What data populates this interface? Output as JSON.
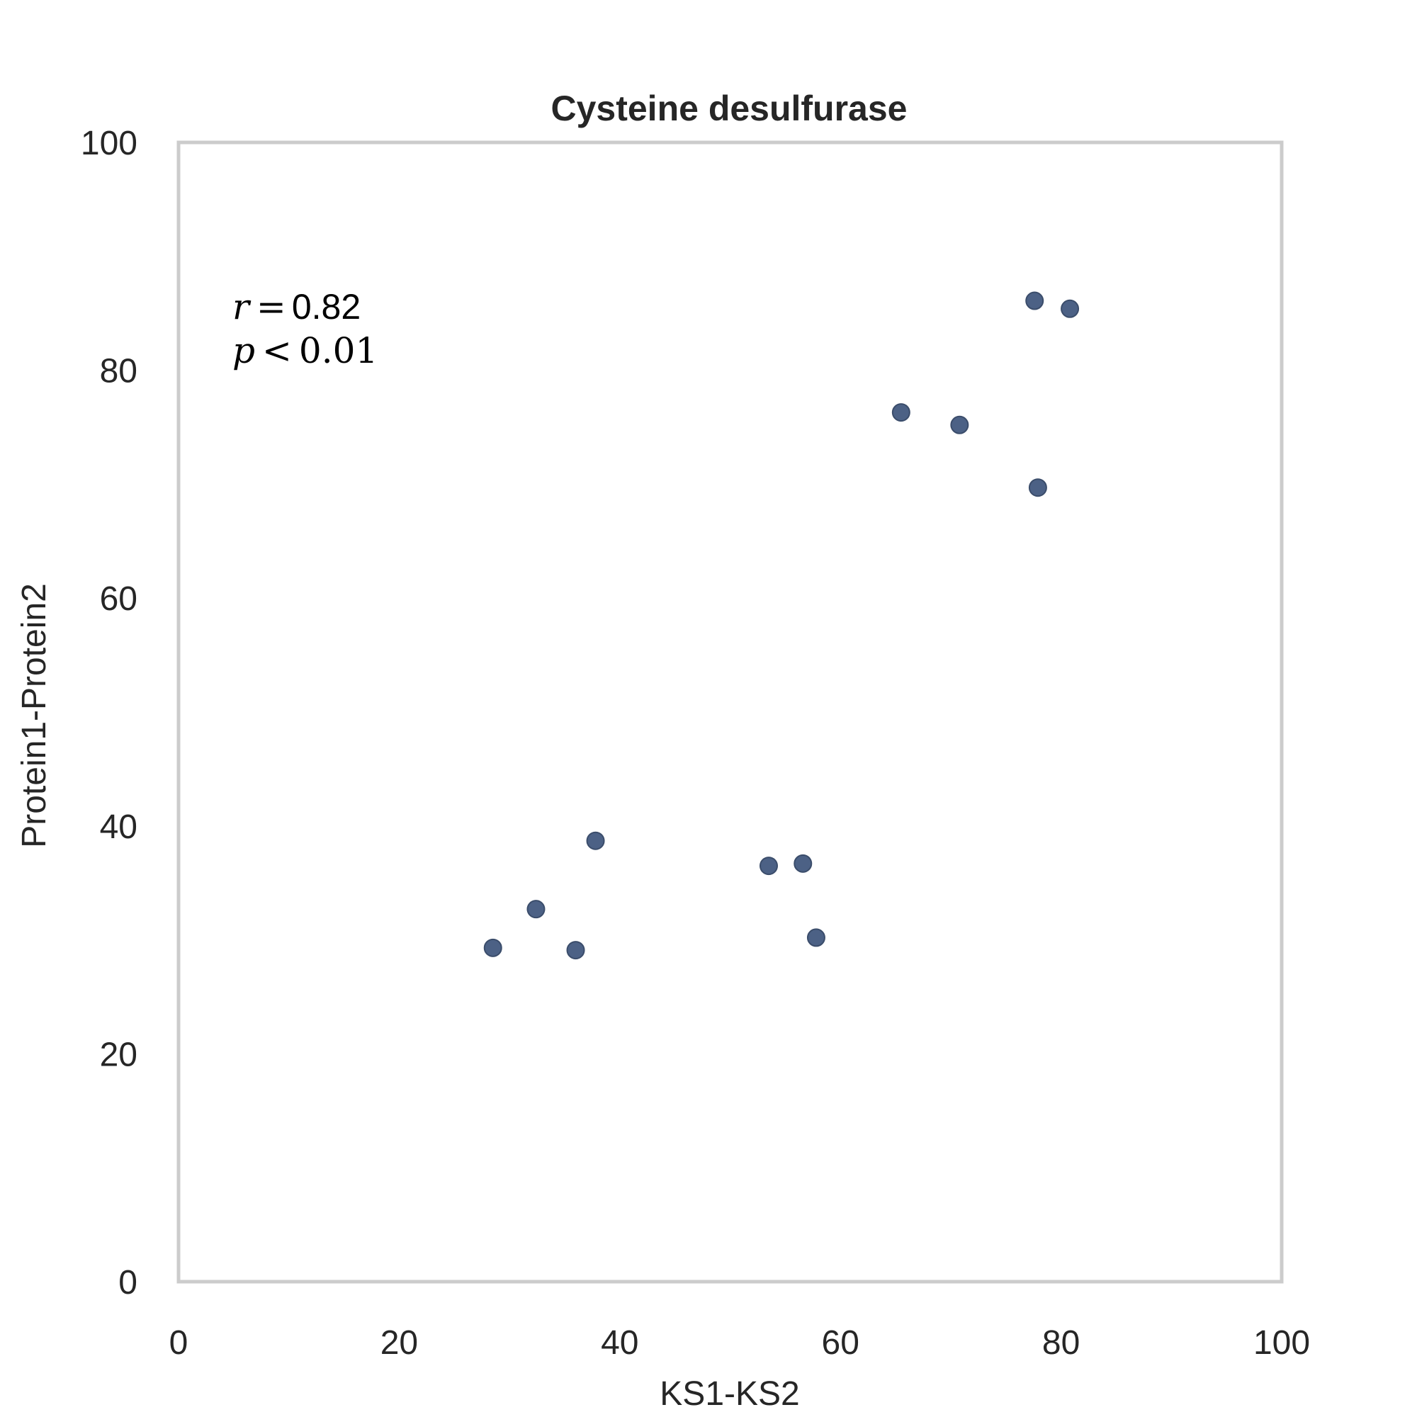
{
  "chart_data": {
    "type": "scatter",
    "title": "Cysteine desulfurase",
    "xlabel": "KS1-KS2",
    "ylabel": "Protein1-Protein2",
    "xlim": [
      0,
      100
    ],
    "ylim": [
      0,
      100
    ],
    "xticks": [
      "0",
      "20",
      "40",
      "60",
      "80",
      "100"
    ],
    "yticks": [
      "0",
      "20",
      "40",
      "60",
      "80",
      "100"
    ],
    "grid": false,
    "annotation": {
      "r_symbol": "r",
      "r_value": "0.82",
      "p_symbol": "p",
      "p_value": "0.01"
    },
    "point_color": "#4c6185",
    "frame_color": "#cccccc",
    "points": [
      {
        "x": 28.5,
        "y": 29.3
      },
      {
        "x": 32.4,
        "y": 32.7
      },
      {
        "x": 36.0,
        "y": 29.1
      },
      {
        "x": 37.8,
        "y": 38.7
      },
      {
        "x": 53.5,
        "y": 36.5
      },
      {
        "x": 56.6,
        "y": 36.7
      },
      {
        "x": 57.8,
        "y": 30.2
      },
      {
        "x": 65.5,
        "y": 76.3
      },
      {
        "x": 70.8,
        "y": 75.2
      },
      {
        "x": 77.6,
        "y": 86.1
      },
      {
        "x": 80.8,
        "y": 85.4
      },
      {
        "x": 77.9,
        "y": 69.7
      }
    ]
  }
}
